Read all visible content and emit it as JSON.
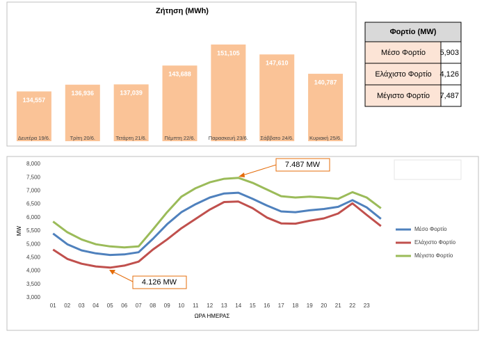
{
  "chart_data": [
    {
      "type": "bar",
      "title": "Ζήτηση (MWh)",
      "categories": [
        "Δευτέρα 19/6.",
        "Τρίτη 20/6.",
        "Τετάρτη 21/6.",
        "Πέμπτη 22/6.",
        "Παρασκευή 23/6.",
        "Σάββατο 24/6.",
        "Κυριακή 25/6."
      ],
      "values": [
        134557,
        136936,
        137039,
        143688,
        151105,
        147610,
        140787
      ],
      "value_labels": [
        "134,557",
        "136,936",
        "137,039",
        "143,688",
        "151,105",
        "147,610",
        "140,787"
      ],
      "color": "#fac397",
      "ylim": [
        117000,
        157000
      ]
    },
    {
      "type": "line",
      "x_label": "ΩΡΑ ΗΜΕΡΑΣ",
      "y_label": "MW",
      "categories": [
        "01",
        "02",
        "03",
        "04",
        "05",
        "06",
        "07",
        "08",
        "09",
        "10",
        "11",
        "12",
        "13",
        "14",
        "15",
        "16",
        "17",
        "18",
        "19",
        "20",
        "21",
        "22",
        "23",
        null
      ],
      "ylim": [
        3000,
        8000
      ],
      "yticks": [
        {
          "value": 3000,
          "label": "3,000"
        },
        {
          "value": 3500,
          "label": "3,500"
        },
        {
          "value": 4000,
          "label": "4,000"
        },
        {
          "value": 4500,
          "label": "4,500"
        },
        {
          "value": 5000,
          "label": "5,000"
        },
        {
          "value": 5500,
          "label": "5,500"
        },
        {
          "value": 6000,
          "label": "6,000"
        },
        {
          "value": 6500,
          "label": "6,500"
        },
        {
          "value": 7000,
          "label": "7,000"
        },
        {
          "value": 7500,
          "label": "7,500"
        },
        {
          "value": 8000,
          "label": "8,000"
        }
      ],
      "grid": false,
      "legend": "right",
      "series": [
        {
          "name": "Μέσο Φορτίο",
          "color": "#4f81bd",
          "values": [
            5400,
            5000,
            4770,
            4660,
            4600,
            4620,
            4700,
            5200,
            5750,
            6200,
            6500,
            6750,
            6900,
            6930,
            6700,
            6450,
            6230,
            6200,
            6270,
            6320,
            6400,
            6650,
            6380,
            5950
          ]
        },
        {
          "name": "Ελάχιστο Φορτίο",
          "color": "#c0504d",
          "values": [
            4800,
            4450,
            4270,
            4170,
            4126,
            4200,
            4350,
            4800,
            5180,
            5600,
            5950,
            6300,
            6580,
            6600,
            6350,
            6000,
            5780,
            5770,
            5880,
            5970,
            6150,
            6530,
            6100,
            5680
          ]
        },
        {
          "name": "Μέγιστο Φορτίο",
          "color": "#9bbb59",
          "values": [
            5850,
            5450,
            5180,
            5000,
            4920,
            4880,
            4920,
            5550,
            6200,
            6780,
            7100,
            7320,
            7450,
            7487,
            7300,
            7050,
            6800,
            6750,
            6780,
            6750,
            6700,
            6950,
            6750,
            6350
          ]
        }
      ],
      "annotations": [
        {
          "text": "7.487 MW"
        },
        {
          "text": "4.126 MW"
        }
      ]
    }
  ],
  "table": {
    "header": "Φορτίο (MW)",
    "rows": [
      [
        "Μέσο Φορτίο",
        "5,903"
      ],
      [
        "Ελάχιστο Φορτίο",
        "4,126"
      ],
      [
        "Μέγιστο Φορτίο",
        "7,487"
      ]
    ]
  }
}
